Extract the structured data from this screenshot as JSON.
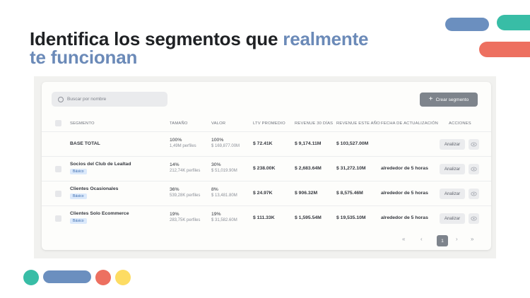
{
  "headline": {
    "part1": "Identifica los segmentos que ",
    "part2": "realmente",
    "part3": "te funcionan"
  },
  "colors": {
    "accent_blue": "#6b8ab8",
    "teal": "#38bda6",
    "coral": "#ed7060",
    "yellow": "#fddc63",
    "button_gray": "#7e848c"
  },
  "toolbar": {
    "search_placeholder": "Buscar por nombre",
    "create_label": "Crear segmento"
  },
  "table": {
    "headers": {
      "segment": "Segmento",
      "size": "Tamaño",
      "value": "Valor",
      "ltv": "LTV Promedio",
      "rev30": "Revenue 30 días",
      "revyear": "Revenue este año",
      "updated": "Fecha de actualización",
      "actions": "Acciones"
    },
    "rows": [
      {
        "name": "BASE TOTAL",
        "badge": "",
        "size_pct": "100%",
        "size_sub": "1,49M perfiles",
        "value_pct": "100%",
        "value_sub": "$ 169,877.00M",
        "ltv": "$ 72.41K",
        "rev30": "$ 9,174.11M",
        "revyear": "$ 103,527.00M",
        "updated": "",
        "action": "Analizar"
      },
      {
        "name": "Socios del Club de Lealtad",
        "badge": "Básico",
        "size_pct": "14%",
        "size_sub": "212,74K perfiles",
        "value_pct": "30%",
        "value_sub": "$ 51,019.90M",
        "ltv": "$ 238.00K",
        "rev30": "$ 2,683.64M",
        "revyear": "$ 31,272.10M",
        "updated": "alrededor de 5 horas",
        "action": "Analizar"
      },
      {
        "name": "Clientes Ocasionales",
        "badge": "Básico",
        "size_pct": "36%",
        "size_sub": "539,28K perfiles",
        "value_pct": "8%",
        "value_sub": "$ 13,481.80M",
        "ltv": "$ 24.97K",
        "rev30": "$ 906.32M",
        "revyear": "$ 8,575.46M",
        "updated": "alrededor de 5 horas",
        "action": "Analizar"
      },
      {
        "name": "Clientes Solo Ecommerce",
        "badge": "Básico",
        "size_pct": "19%",
        "size_sub": "283,75K perfiles",
        "value_pct": "19%",
        "value_sub": "$ 31,582.60M",
        "ltv": "$ 111.33K",
        "rev30": "$ 1,595.54M",
        "revyear": "$ 19,535.10M",
        "updated": "alrededor de 5 horas",
        "action": "Analizar"
      }
    ]
  },
  "pagination": {
    "first": "«",
    "prev": "‹",
    "current": "1",
    "next": "›",
    "last": "»"
  }
}
